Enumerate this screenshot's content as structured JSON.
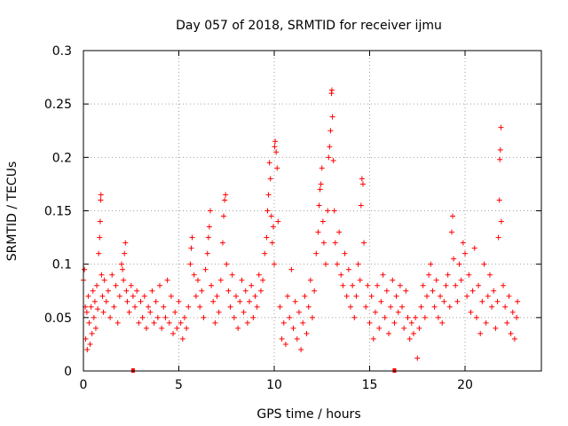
{
  "chart_data": {
    "type": "scatter",
    "title": "Day 057 of 2018, SRMTID for receiver ijmu",
    "xlabel": "GPS time / hours",
    "ylabel": "SRMTID / TECUs",
    "xlim": [
      0,
      24
    ],
    "ylim": [
      0,
      0.3
    ],
    "x_ticks": [
      0,
      5,
      10,
      15,
      20
    ],
    "x_tick_labels": [
      "0",
      "5",
      "10",
      "15",
      "20"
    ],
    "y_ticks": [
      0,
      0.05,
      0.1,
      0.15,
      0.2,
      0.25,
      0.3
    ],
    "y_tick_labels": [
      "0",
      "0.05",
      "0.1",
      "0.15",
      "0.2",
      "0.25",
      "0.3"
    ],
    "grid": true,
    "marker": "plus",
    "marker_color": "#ff0000",
    "series": [
      {
        "name": "SRMTID",
        "points": [
          [
            0.0,
            0.085
          ],
          [
            0.05,
            0.095
          ],
          [
            0.1,
            0.06
          ],
          [
            0.12,
            0.03
          ],
          [
            0.18,
            0.055
          ],
          [
            0.2,
            0.02
          ],
          [
            0.25,
            0.07
          ],
          [
            0.3,
            0.045
          ],
          [
            0.35,
            0.025
          ],
          [
            0.4,
            0.06
          ],
          [
            0.45,
            0.035
          ],
          [
            0.5,
            0.075
          ],
          [
            0.55,
            0.05
          ],
          [
            0.6,
            0.065
          ],
          [
            0.65,
            0.04
          ],
          [
            0.7,
            0.08
          ],
          [
            0.75,
            0.058
          ],
          [
            0.8,
            0.11
          ],
          [
            0.85,
            0.125
          ],
          [
            0.88,
            0.14
          ],
          [
            0.9,
            0.16
          ],
          [
            0.92,
            0.165
          ],
          [
            0.95,
            0.09
          ],
          [
            1.0,
            0.07
          ],
          [
            1.05,
            0.055
          ],
          [
            1.1,
            0.085
          ],
          [
            1.2,
            0.065
          ],
          [
            1.3,
            0.075
          ],
          [
            1.4,
            0.05
          ],
          [
            1.5,
            0.09
          ],
          [
            1.6,
            0.06
          ],
          [
            1.7,
            0.08
          ],
          [
            1.8,
            0.045
          ],
          [
            1.9,
            0.07
          ],
          [
            2.0,
            0.1
          ],
          [
            2.05,
            0.095
          ],
          [
            2.1,
            0.085
          ],
          [
            2.15,
            0.11
          ],
          [
            2.2,
            0.12
          ],
          [
            2.25,
            0.075
          ],
          [
            2.3,
            0.065
          ],
          [
            2.4,
            0.055
          ],
          [
            2.5,
            0.08
          ],
          [
            2.6,
            0.07
          ],
          [
            2.7,
            0.06
          ],
          [
            2.8,
            0.075
          ],
          [
            2.9,
            0.045
          ],
          [
            3.0,
            0.065
          ],
          [
            3.1,
            0.05
          ],
          [
            3.2,
            0.07
          ],
          [
            3.3,
            0.04
          ],
          [
            3.4,
            0.06
          ],
          [
            3.5,
            0.055
          ],
          [
            3.6,
            0.075
          ],
          [
            3.7,
            0.045
          ],
          [
            3.8,
            0.065
          ],
          [
            3.9,
            0.05
          ],
          [
            4.0,
            0.08
          ],
          [
            4.1,
            0.04
          ],
          [
            4.2,
            0.06
          ],
          [
            4.3,
            0.05
          ],
          [
            4.4,
            0.085
          ],
          [
            4.5,
            0.045
          ],
          [
            4.6,
            0.07
          ],
          [
            4.7,
            0.035
          ],
          [
            4.8,
            0.055
          ],
          [
            4.9,
            0.04
          ],
          [
            5.0,
            0.065
          ],
          [
            5.1,
            0.045
          ],
          [
            5.2,
            0.03
          ],
          [
            5.3,
            0.05
          ],
          [
            5.4,
            0.04
          ],
          [
            5.5,
            0.06
          ],
          [
            5.6,
            0.1
          ],
          [
            5.65,
            0.115
          ],
          [
            5.7,
            0.125
          ],
          [
            5.8,
            0.09
          ],
          [
            5.9,
            0.07
          ],
          [
            6.0,
            0.085
          ],
          [
            6.1,
            0.06
          ],
          [
            6.2,
            0.075
          ],
          [
            6.3,
            0.05
          ],
          [
            6.4,
            0.095
          ],
          [
            6.5,
            0.11
          ],
          [
            6.55,
            0.125
          ],
          [
            6.6,
            0.135
          ],
          [
            6.65,
            0.15
          ],
          [
            6.7,
            0.08
          ],
          [
            6.8,
            0.065
          ],
          [
            6.9,
            0.045
          ],
          [
            7.0,
            0.07
          ],
          [
            7.1,
            0.055
          ],
          [
            7.2,
            0.085
          ],
          [
            7.3,
            0.12
          ],
          [
            7.35,
            0.145
          ],
          [
            7.4,
            0.16
          ],
          [
            7.45,
            0.165
          ],
          [
            7.5,
            0.1
          ],
          [
            7.6,
            0.075
          ],
          [
            7.7,
            0.06
          ],
          [
            7.8,
            0.09
          ],
          [
            7.9,
            0.05
          ],
          [
            8.0,
            0.07
          ],
          [
            8.1,
            0.04
          ],
          [
            8.2,
            0.065
          ],
          [
            8.3,
            0.085
          ],
          [
            8.4,
            0.055
          ],
          [
            8.5,
            0.075
          ],
          [
            8.6,
            0.045
          ],
          [
            8.7,
            0.065
          ],
          [
            8.8,
            0.08
          ],
          [
            8.9,
            0.05
          ],
          [
            9.0,
            0.07
          ],
          [
            9.1,
            0.06
          ],
          [
            9.2,
            0.09
          ],
          [
            9.3,
            0.075
          ],
          [
            9.4,
            0.085
          ],
          [
            9.5,
            0.11
          ],
          [
            9.6,
            0.125
          ],
          [
            9.65,
            0.15
          ],
          [
            9.7,
            0.165
          ],
          [
            9.75,
            0.195
          ],
          [
            9.8,
            0.18
          ],
          [
            9.85,
            0.145
          ],
          [
            9.9,
            0.12
          ],
          [
            9.95,
            0.135
          ],
          [
            10.0,
            0.1
          ],
          [
            10.02,
            0.21
          ],
          [
            10.05,
            0.215
          ],
          [
            10.1,
            0.205
          ],
          [
            10.15,
            0.19
          ],
          [
            10.2,
            0.14
          ],
          [
            10.3,
            0.06
          ],
          [
            10.4,
            0.03
          ],
          [
            10.5,
            0.045
          ],
          [
            10.6,
            0.025
          ],
          [
            10.7,
            0.07
          ],
          [
            10.8,
            0.05
          ],
          [
            10.9,
            0.095
          ],
          [
            11.0,
            0.04
          ],
          [
            11.1,
            0.065
          ],
          [
            11.2,
            0.03
          ],
          [
            11.3,
            0.055
          ],
          [
            11.4,
            0.02
          ],
          [
            11.5,
            0.045
          ],
          [
            11.6,
            0.07
          ],
          [
            11.7,
            0.035
          ],
          [
            11.8,
            0.06
          ],
          [
            11.9,
            0.085
          ],
          [
            12.0,
            0.05
          ],
          [
            12.1,
            0.075
          ],
          [
            12.2,
            0.11
          ],
          [
            12.3,
            0.13
          ],
          [
            12.35,
            0.155
          ],
          [
            12.4,
            0.17
          ],
          [
            12.45,
            0.175
          ],
          [
            12.5,
            0.19
          ],
          [
            12.55,
            0.14
          ],
          [
            12.6,
            0.12
          ],
          [
            12.7,
            0.1
          ],
          [
            12.8,
            0.15
          ],
          [
            12.85,
            0.2
          ],
          [
            12.9,
            0.21
          ],
          [
            12.95,
            0.225
          ],
          [
            13.0,
            0.26
          ],
          [
            13.02,
            0.263
          ],
          [
            13.05,
            0.238
          ],
          [
            13.1,
            0.197
          ],
          [
            13.15,
            0.15
          ],
          [
            13.2,
            0.12
          ],
          [
            13.3,
            0.1
          ],
          [
            13.4,
            0.13
          ],
          [
            13.5,
            0.09
          ],
          [
            13.6,
            0.08
          ],
          [
            13.7,
            0.11
          ],
          [
            13.8,
            0.07
          ],
          [
            13.9,
            0.095
          ],
          [
            14.0,
            0.06
          ],
          [
            14.1,
            0.08
          ],
          [
            14.2,
            0.05
          ],
          [
            14.3,
            0.07
          ],
          [
            14.4,
            0.1
          ],
          [
            14.5,
            0.085
          ],
          [
            14.55,
            0.155
          ],
          [
            14.6,
            0.18
          ],
          [
            14.65,
            0.175
          ],
          [
            14.7,
            0.12
          ],
          [
            14.8,
            0.06
          ],
          [
            14.9,
            0.08
          ],
          [
            15.0,
            0.045
          ],
          [
            15.1,
            0.07
          ],
          [
            15.2,
            0.03
          ],
          [
            15.3,
            0.055
          ],
          [
            15.4,
            0.08
          ],
          [
            15.5,
            0.04
          ],
          [
            15.6,
            0.065
          ],
          [
            15.7,
            0.09
          ],
          [
            15.8,
            0.05
          ],
          [
            15.9,
            0.075
          ],
          [
            16.0,
            0.035
          ],
          [
            16.1,
            0.06
          ],
          [
            16.2,
            0.085
          ],
          [
            16.3,
            0.045
          ],
          [
            16.4,
            0.07
          ],
          [
            16.5,
            0.055
          ],
          [
            16.6,
            0.08
          ],
          [
            16.7,
            0.06
          ],
          [
            16.8,
            0.04
          ],
          [
            16.9,
            0.075
          ],
          [
            17.0,
            0.05
          ],
          [
            17.1,
            0.03
          ],
          [
            17.2,
            0.045
          ],
          [
            17.3,
            0.035
          ],
          [
            17.4,
            0.05
          ],
          [
            17.5,
            0.012
          ],
          [
            17.6,
            0.04
          ],
          [
            17.7,
            0.06
          ],
          [
            17.8,
            0.08
          ],
          [
            17.9,
            0.05
          ],
          [
            18.0,
            0.07
          ],
          [
            18.1,
            0.09
          ],
          [
            18.2,
            0.1
          ],
          [
            18.3,
            0.075
          ],
          [
            18.4,
            0.06
          ],
          [
            18.5,
            0.085
          ],
          [
            18.6,
            0.05
          ],
          [
            18.7,
            0.07
          ],
          [
            18.8,
            0.045
          ],
          [
            18.9,
            0.065
          ],
          [
            19.0,
            0.08
          ],
          [
            19.1,
            0.09
          ],
          [
            19.2,
            0.06
          ],
          [
            19.3,
            0.13
          ],
          [
            19.35,
            0.145
          ],
          [
            19.4,
            0.105
          ],
          [
            19.5,
            0.08
          ],
          [
            19.6,
            0.065
          ],
          [
            19.7,
            0.1
          ],
          [
            19.8,
            0.085
          ],
          [
            19.9,
            0.12
          ],
          [
            20.0,
            0.11
          ],
          [
            20.1,
            0.07
          ],
          [
            20.2,
            0.09
          ],
          [
            20.3,
            0.055
          ],
          [
            20.4,
            0.075
          ],
          [
            20.5,
            0.115
          ],
          [
            20.6,
            0.05
          ],
          [
            20.7,
            0.08
          ],
          [
            20.8,
            0.035
          ],
          [
            20.9,
            0.065
          ],
          [
            21.0,
            0.1
          ],
          [
            21.1,
            0.045
          ],
          [
            21.2,
            0.07
          ],
          [
            21.3,
            0.09
          ],
          [
            21.4,
            0.06
          ],
          [
            21.5,
            0.075
          ],
          [
            21.6,
            0.04
          ],
          [
            21.7,
            0.065
          ],
          [
            21.75,
            0.125
          ],
          [
            21.8,
            0.16
          ],
          [
            21.82,
            0.198
          ],
          [
            21.85,
            0.207
          ],
          [
            21.88,
            0.228
          ],
          [
            21.9,
            0.14
          ],
          [
            22.0,
            0.08
          ],
          [
            22.1,
            0.06
          ],
          [
            22.2,
            0.045
          ],
          [
            22.3,
            0.07
          ],
          [
            22.4,
            0.035
          ],
          [
            22.5,
            0.055
          ],
          [
            22.6,
            0.03
          ],
          [
            22.7,
            0.05
          ],
          [
            22.75,
            0.065
          ]
        ]
      }
    ],
    "markers_on_axis": [
      {
        "x": 2.6,
        "y": 0.0
      },
      {
        "x": 16.3,
        "y": 0.0
      }
    ]
  }
}
